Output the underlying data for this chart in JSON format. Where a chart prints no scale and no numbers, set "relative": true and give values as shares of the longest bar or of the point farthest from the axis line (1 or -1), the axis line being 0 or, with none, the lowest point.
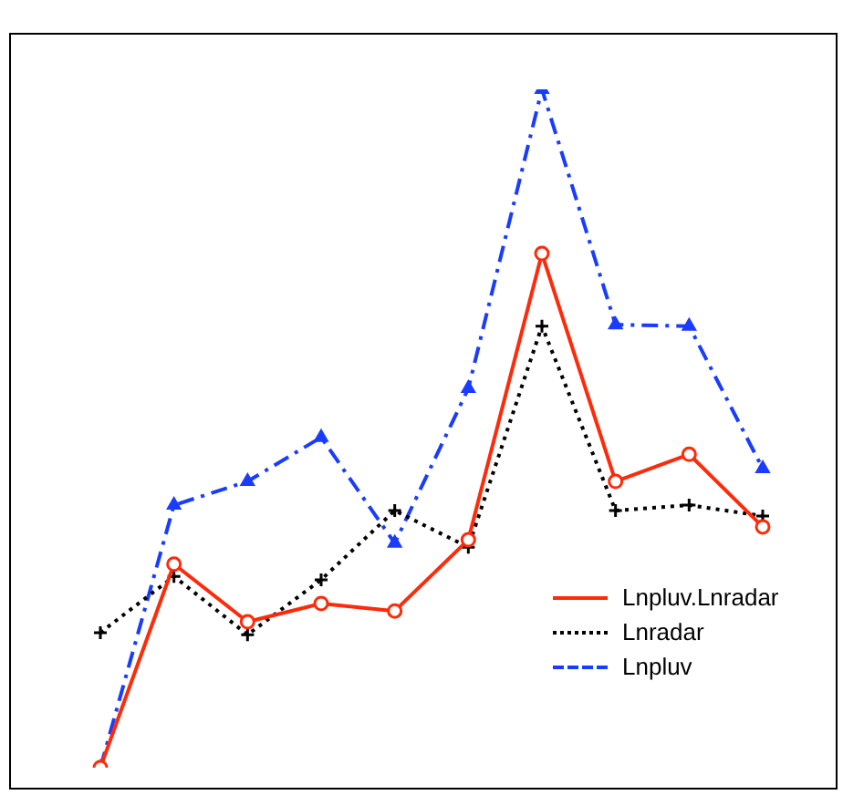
{
  "chart_data": {
    "type": "line",
    "relative": true,
    "categories": [
      null,
      null,
      null,
      null,
      null,
      null,
      null,
      null,
      null,
      null
    ],
    "legend": "bottom right",
    "series": [
      {
        "name": "Lnpluv.Lnradar",
        "color": "#ff2a0a",
        "marker": "circle",
        "line_style": "solid",
        "values": [
          0,
          0.3,
          0.215,
          0.242,
          0.231,
          0.336,
          0.758,
          0.422,
          0.462,
          0.355
        ]
      },
      {
        "name": "Lnradar",
        "color": "#000000",
        "marker": "cross",
        "line_style": "dotted",
        "values": [
          0.199,
          0.282,
          0.196,
          0.277,
          0.379,
          0.325,
          0.651,
          0.379,
          0.387,
          0.371
        ]
      },
      {
        "name": "Lnpluv",
        "color": "#1a3cff",
        "marker": "triangle",
        "line_style": "dashed",
        "values": [
          0,
          0.387,
          0.422,
          0.487,
          0.331,
          0.559,
          1,
          0.653,
          0.651,
          0.441
        ]
      }
    ]
  }
}
